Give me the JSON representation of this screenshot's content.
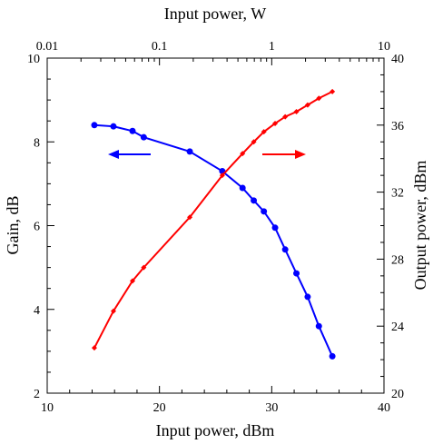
{
  "chart_data": {
    "type": "line",
    "xlabel_bottom": "Input power, dBm",
    "xlabel_top": "Input power, W",
    "ylabel_left": "Gain, dB",
    "ylabel_right": "Output power, dBm",
    "xlim": [
      10,
      40
    ],
    "ylim_left": [
      2,
      10
    ],
    "ylim_right": [
      20,
      40
    ],
    "xlim_top_watts": [
      0.01,
      10
    ],
    "top_axis_scale": "log",
    "grid": false,
    "legend": "none",
    "x_ticks": [
      "10",
      "20",
      "30",
      "40"
    ],
    "y_left_ticks": [
      "2",
      "4",
      "6",
      "8",
      "10"
    ],
    "y_right_ticks": [
      "20",
      "24",
      "28",
      "32",
      "36",
      "40"
    ],
    "top_ticks": [
      "0.01",
      "0.1",
      "1",
      "10"
    ],
    "series": [
      {
        "axis": "left",
        "color": "#0000ff",
        "marker": "circle",
        "arrow": "left",
        "x": [
          14.2,
          15.9,
          17.6,
          18.6,
          22.7,
          25.6,
          27.4,
          28.4,
          29.3,
          30.3,
          31.2,
          32.2,
          33.2,
          34.2,
          35.4
        ],
        "y": [
          8.4,
          8.37,
          8.26,
          8.11,
          7.77,
          7.3,
          6.9,
          6.6,
          6.34,
          5.95,
          5.43,
          4.86,
          4.3,
          3.6,
          2.88
        ]
      },
      {
        "axis": "right",
        "color": "#ff0000",
        "marker": "diamond",
        "arrow": "right",
        "x": [
          14.2,
          15.9,
          17.6,
          18.6,
          22.7,
          25.6,
          27.4,
          28.4,
          29.3,
          30.3,
          31.2,
          32.2,
          33.2,
          34.2,
          35.4
        ],
        "y": [
          22.7,
          24.9,
          26.7,
          27.5,
          30.5,
          33.0,
          34.3,
          35.0,
          35.6,
          36.1,
          36.5,
          36.8,
          37.2,
          37.6,
          38.0
        ]
      }
    ]
  }
}
